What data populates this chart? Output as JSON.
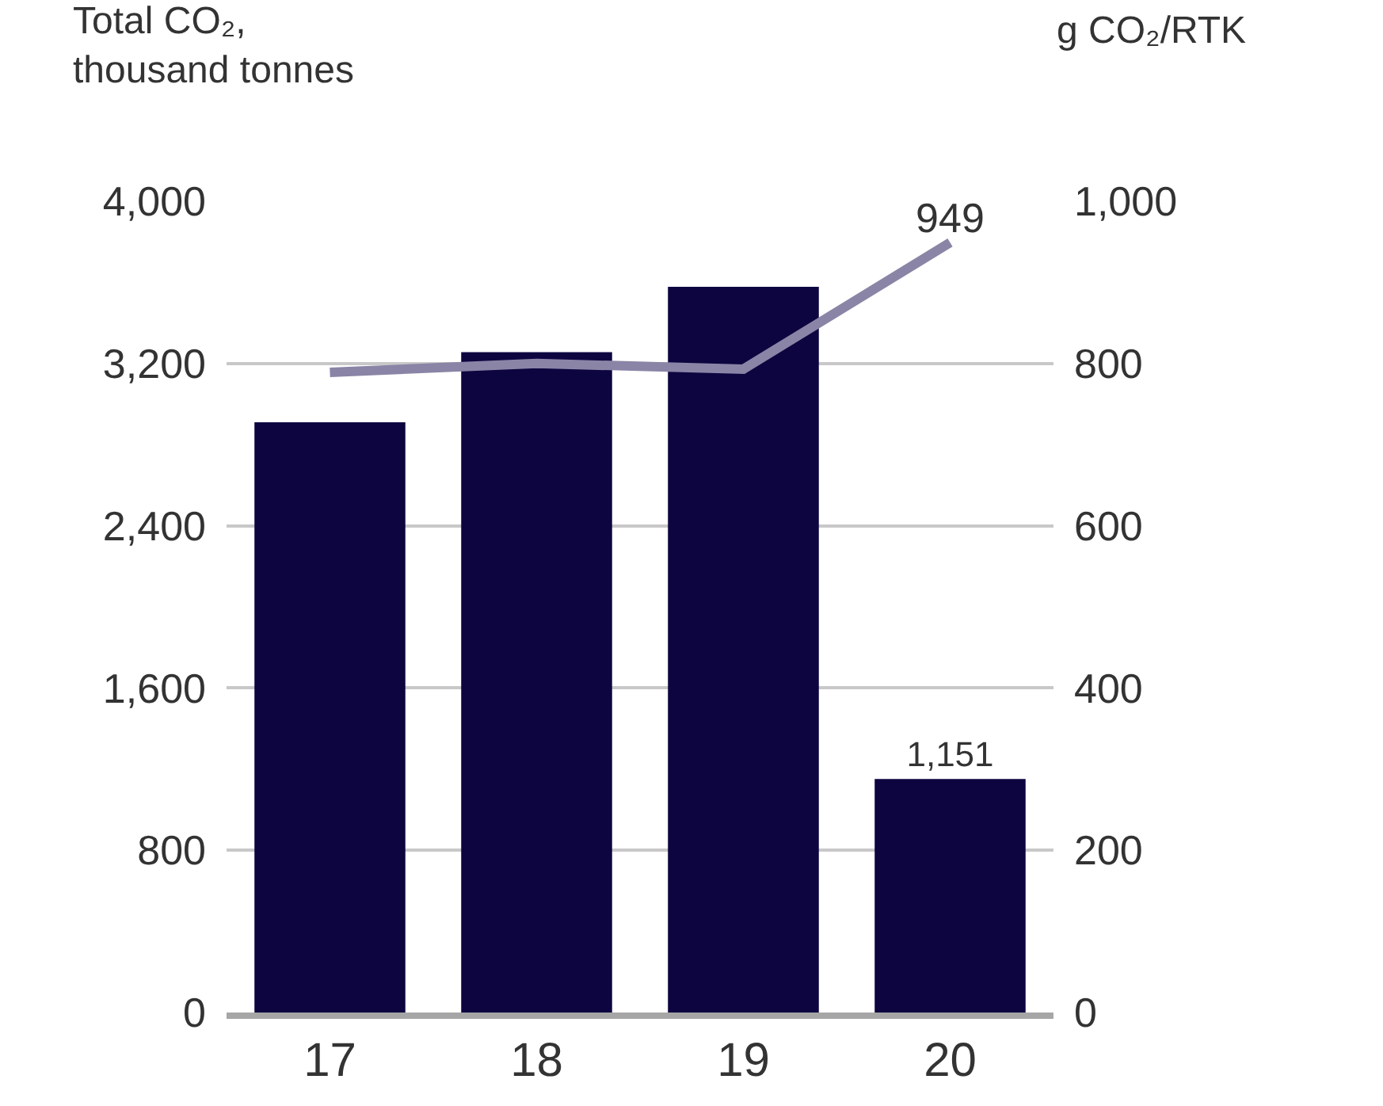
{
  "chart_data": {
    "type": "bar",
    "ylabel": "Total CO₂,\nthousand tonnes",
    "y2label": "g CO₂/RTK",
    "categories": [
      "17",
      "18",
      "19",
      "20"
    ],
    "series": [
      {
        "color": "#0d0540",
        "values": [
          2910,
          3256,
          3578,
          1151
        ],
        "value_labels": [
          null,
          null,
          null,
          "1,151"
        ]
      },
      {
        "type": "line",
        "axis": "y2",
        "color": "#8a85a6",
        "values": [
          789,
          800,
          793,
          949
        ],
        "value_labels": [
          null,
          null,
          null,
          "949"
        ]
      }
    ],
    "ylim": [
      0,
      4000
    ],
    "yticks": [
      {
        "value": 0,
        "label": "0"
      },
      {
        "value": 800,
        "label": "800"
      },
      {
        "value": 1600,
        "label": "1,600"
      },
      {
        "value": 2400,
        "label": "2,400"
      },
      {
        "value": 3200,
        "label": "3,200"
      },
      {
        "value": 4000,
        "label": "4,000"
      }
    ],
    "y2lim": [
      0,
      1000
    ],
    "y2ticks": [
      {
        "value": 0,
        "label": "0"
      },
      {
        "value": 200,
        "label": "200"
      },
      {
        "value": 400,
        "label": "400"
      },
      {
        "value": 600,
        "label": "600"
      },
      {
        "value": 800,
        "label": "800"
      },
      {
        "value": 1000,
        "label": "1,000"
      }
    ],
    "grid": "y",
    "marker": "none",
    "line_style": "solid"
  }
}
